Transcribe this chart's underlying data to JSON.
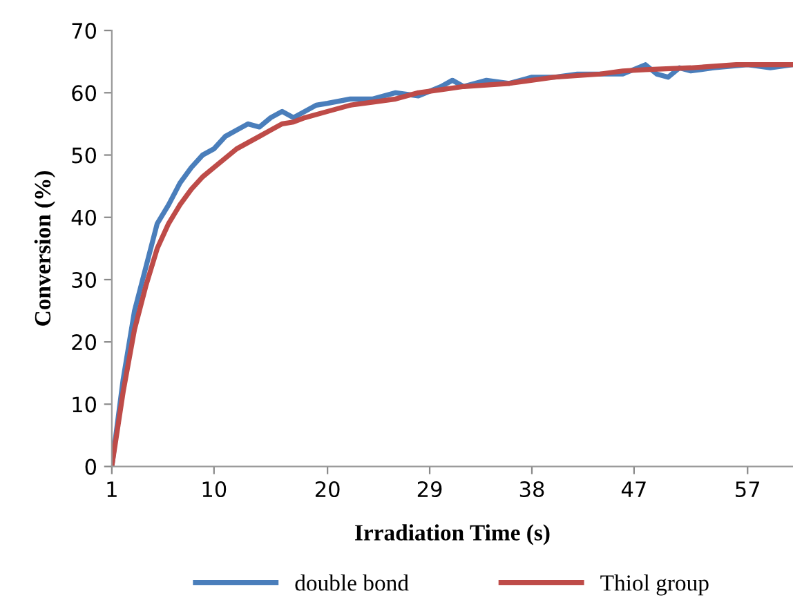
{
  "chart_data": {
    "type": "line",
    "xlabel": "Irradiation Time (s)",
    "ylabel": "Conversion (%)",
    "xlim": [
      1,
      61
    ],
    "xticks": [
      1,
      10,
      20,
      29,
      38,
      47,
      57
    ],
    "ylim": [
      0,
      70
    ],
    "yticks": [
      0,
      10,
      20,
      30,
      40,
      50,
      60,
      70
    ],
    "grid": false,
    "legend": "bottom",
    "marker": "none",
    "line_style": "solid",
    "series": [
      {
        "name": "double bond",
        "color": "#4a7ebb",
        "x": [
          1,
          2,
          3,
          4,
          5,
          6,
          7,
          8,
          9,
          10,
          11,
          12,
          13,
          14,
          15,
          16,
          17,
          18,
          19,
          20,
          22,
          24,
          26,
          28,
          30,
          31,
          32,
          34,
          36,
          38,
          40,
          42,
          44,
          46,
          48,
          49,
          50,
          51,
          52,
          54,
          57,
          59,
          61
        ],
        "values": [
          0,
          14,
          25,
          32,
          39,
          42,
          45.5,
          48,
          50,
          51,
          53,
          54,
          55,
          54.5,
          56,
          57,
          56,
          57,
          58,
          58.3,
          59,
          59,
          60,
          59.5,
          61,
          62,
          61,
          62,
          61.5,
          62.5,
          62.5,
          63,
          63,
          63,
          64.5,
          63,
          62.5,
          64,
          63.5,
          64,
          64.5,
          64,
          64.5
        ]
      },
      {
        "name": "Thiol group",
        "color": "#be4b48",
        "x": [
          1,
          2,
          3,
          4,
          5,
          6,
          7,
          8,
          9,
          10,
          11,
          12,
          13,
          14,
          15,
          16,
          17,
          18,
          20,
          22,
          24,
          26,
          28,
          30,
          32,
          36,
          40,
          44,
          46,
          48,
          52,
          56,
          61
        ],
        "values": [
          0,
          12,
          22,
          29,
          35,
          39,
          42,
          44.5,
          46.5,
          48,
          49.5,
          51,
          52,
          53,
          54,
          55,
          55.3,
          56,
          57,
          58,
          58.5,
          59,
          60,
          60.5,
          61,
          61.5,
          62.5,
          63,
          63.5,
          63.7,
          64,
          64.5,
          64.5
        ]
      }
    ]
  }
}
